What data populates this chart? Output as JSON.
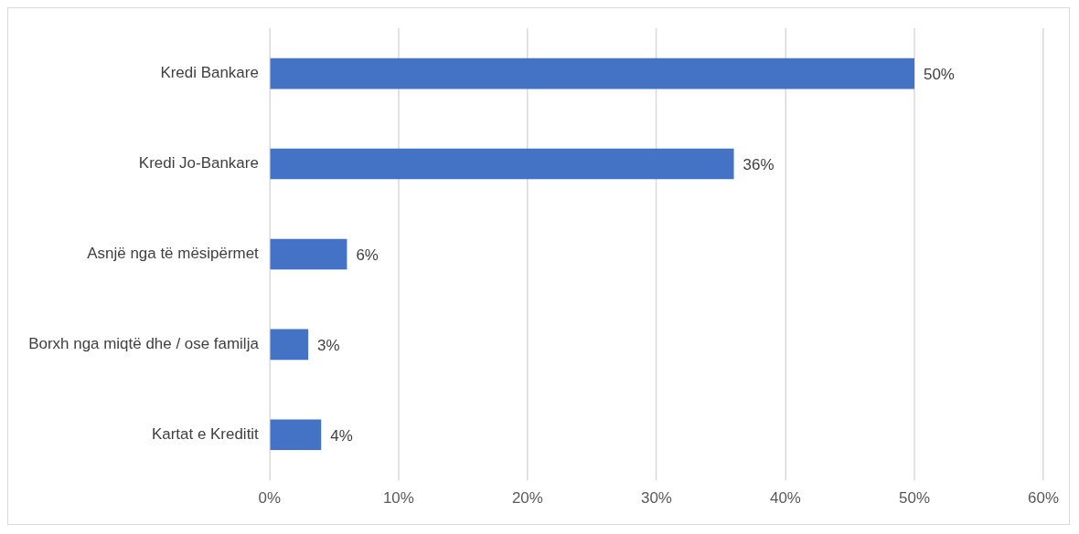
{
  "chart_data": {
    "type": "bar",
    "orientation": "horizontal",
    "categories": [
      "Kredi Bankare",
      "Kredi Jo-Bankare",
      "Asnjë nga të mësipërmet",
      "Borxh nga miqtë dhe / ose familja",
      "Kartat e Kreditit"
    ],
    "values": [
      50,
      36,
      6,
      3,
      4
    ],
    "value_labels": [
      "50%",
      "36%",
      "6%",
      "3%",
      "4%"
    ],
    "color": "#4472c4",
    "xlim": [
      0,
      60
    ],
    "xticks": [
      {
        "value": 0,
        "label": "0%"
      },
      {
        "value": 10,
        "label": "10%"
      },
      {
        "value": 20,
        "label": "20%"
      },
      {
        "value": 30,
        "label": "30%"
      },
      {
        "value": 40,
        "label": "40%"
      },
      {
        "value": 50,
        "label": "50%"
      },
      {
        "value": 60,
        "label": "60%"
      }
    ],
    "grid": "x",
    "legend": false
  }
}
